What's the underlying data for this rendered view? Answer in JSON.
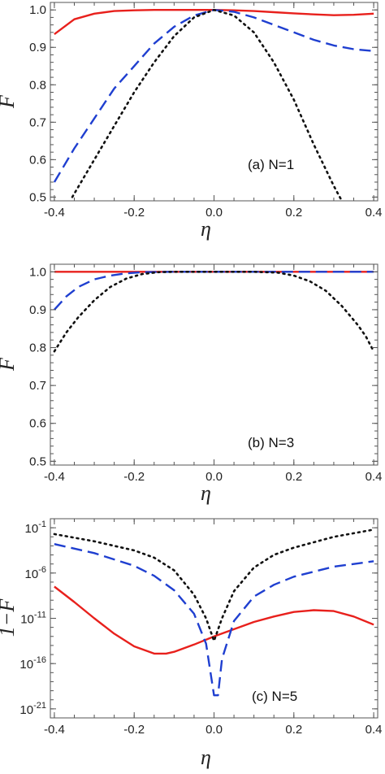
{
  "chart_data": [
    {
      "type": "line",
      "panel_label": "(a) N=1",
      "xlabel": "η",
      "ylabel": "F",
      "xlim": [
        -0.41,
        0.41
      ],
      "ylim": [
        0.49,
        1.02
      ],
      "log_y": false,
      "xticks": [
        "-0.4",
        "-0.2",
        "0.0",
        "0.2",
        "0.4"
      ],
      "xtick_values": [
        -0.4,
        -0.2,
        0.0,
        0.2,
        0.4
      ],
      "yticks": [
        "0.5",
        "0.6",
        "0.7",
        "0.8",
        "0.9",
        "1.0"
      ],
      "ytick_values": [
        0.5,
        0.6,
        0.7,
        0.8,
        0.9,
        1.0
      ],
      "series": [
        {
          "style": "solid",
          "color": "#e8201c",
          "x": [
            -0.4,
            -0.35,
            -0.3,
            -0.25,
            -0.2,
            -0.15,
            -0.1,
            -0.05,
            0.0,
            0.05,
            0.1,
            0.15,
            0.2,
            0.25,
            0.3,
            0.35,
            0.4
          ],
          "y": [
            0.935,
            0.975,
            0.99,
            0.997,
            0.999,
            1.0,
            1.0,
            1.0,
            1.0,
            0.999,
            0.997,
            0.994,
            0.991,
            0.988,
            0.986,
            0.987,
            0.99
          ]
        },
        {
          "style": "dashed",
          "color": "#1f3fd0",
          "x": [
            -0.4,
            -0.35,
            -0.3,
            -0.25,
            -0.2,
            -0.15,
            -0.1,
            -0.05,
            0.0,
            0.05,
            0.1,
            0.15,
            0.2,
            0.25,
            0.3,
            0.35,
            0.4
          ],
          "y": [
            0.54,
            0.63,
            0.71,
            0.79,
            0.85,
            0.91,
            0.955,
            0.985,
            1.0,
            0.995,
            0.98,
            0.96,
            0.94,
            0.92,
            0.905,
            0.895,
            0.89
          ]
        },
        {
          "style": "dotted",
          "color": "#111111",
          "x": [
            -0.355,
            -0.3,
            -0.25,
            -0.2,
            -0.15,
            -0.1,
            -0.05,
            0.0,
            0.05,
            0.1,
            0.15,
            0.2,
            0.25,
            0.3,
            0.32
          ],
          "y": [
            0.5,
            0.6,
            0.69,
            0.78,
            0.86,
            0.93,
            0.98,
            1.0,
            0.985,
            0.94,
            0.86,
            0.76,
            0.64,
            0.53,
            0.49
          ]
        }
      ]
    },
    {
      "type": "line",
      "panel_label": "(b) N=3",
      "xlabel": "η",
      "ylabel": "F",
      "xlim": [
        -0.41,
        0.41
      ],
      "ylim": [
        0.49,
        1.02
      ],
      "log_y": false,
      "xticks": [
        "-0.4",
        "-0.2",
        "0.0",
        "0.2",
        "0.4"
      ],
      "xtick_values": [
        -0.4,
        -0.2,
        0.0,
        0.2,
        0.4
      ],
      "yticks": [
        "0.5",
        "0.6",
        "0.7",
        "0.8",
        "0.9",
        "1.0"
      ],
      "ytick_values": [
        0.5,
        0.6,
        0.7,
        0.8,
        0.9,
        1.0
      ],
      "series": [
        {
          "style": "solid",
          "color": "#e8201c",
          "x": [
            -0.4,
            -0.2,
            0.0,
            0.2,
            0.4
          ],
          "y": [
            1.0,
            1.0,
            1.0,
            1.0,
            1.0
          ]
        },
        {
          "style": "dashed",
          "color": "#1f3fd0",
          "x": [
            -0.4,
            -0.37,
            -0.34,
            -0.3,
            -0.26,
            -0.22,
            -0.18,
            -0.1,
            0.0,
            0.1,
            0.2,
            0.3,
            0.4
          ],
          "y": [
            0.9,
            0.935,
            0.96,
            0.98,
            0.99,
            0.996,
            0.999,
            1.0,
            1.0,
            1.0,
            1.0,
            1.0,
            1.0
          ]
        },
        {
          "style": "dotted",
          "color": "#111111",
          "x": [
            -0.4,
            -0.37,
            -0.34,
            -0.3,
            -0.26,
            -0.22,
            -0.18,
            -0.14,
            -0.1,
            0.0,
            0.1,
            0.16,
            0.2,
            0.24,
            0.28,
            0.32,
            0.36,
            0.38,
            0.4
          ],
          "y": [
            0.79,
            0.84,
            0.88,
            0.925,
            0.96,
            0.982,
            0.994,
            0.999,
            1.0,
            1.0,
            1.0,
            0.998,
            0.99,
            0.975,
            0.95,
            0.91,
            0.86,
            0.83,
            0.79
          ]
        }
      ]
    },
    {
      "type": "line",
      "panel_label": "(c) N=5",
      "xlabel": "η",
      "ylabel": "1−F",
      "xlim": [
        -0.41,
        0.41
      ],
      "ylim_log10": [
        -22,
        0
      ],
      "log_y": true,
      "xticks": [
        "-0.4",
        "-0.2",
        "0.0",
        "0.2",
        "0.4"
      ],
      "xtick_values": [
        -0.4,
        -0.2,
        0.0,
        0.2,
        0.4
      ],
      "yticks": [
        {
          "base": "10",
          "exp": "-1",
          "value": -1
        },
        {
          "base": "10",
          "exp": "-6",
          "value": -6
        },
        {
          "base": "10",
          "exp": "-11",
          "value": -11
        },
        {
          "base": "10",
          "exp": "-16",
          "value": -16
        },
        {
          "base": "10",
          "exp": "-21",
          "value": -21
        }
      ],
      "series": [
        {
          "style": "solid",
          "color": "#e8201c",
          "x": [
            -0.4,
            -0.35,
            -0.3,
            -0.25,
            -0.2,
            -0.15,
            -0.12,
            -0.1,
            -0.05,
            0.0,
            0.05,
            0.1,
            0.15,
            0.2,
            0.25,
            0.3,
            0.35,
            0.4
          ],
          "y_log10": [
            -7.5,
            -9.2,
            -11.0,
            -12.7,
            -14.1,
            -14.9,
            -14.9,
            -14.7,
            -13.9,
            -13.0,
            -12.2,
            -11.4,
            -10.8,
            -10.3,
            -10.1,
            -10.2,
            -10.8,
            -11.7
          ]
        },
        {
          "style": "dashed",
          "color": "#1f3fd0",
          "x": [
            -0.4,
            -0.3,
            -0.2,
            -0.15,
            -0.1,
            -0.05,
            -0.02,
            0.0,
            0.01,
            0.02,
            0.05,
            0.1,
            0.15,
            0.2,
            0.3,
            0.4
          ],
          "y_log10": [
            -2.8,
            -3.8,
            -5.2,
            -6.3,
            -7.9,
            -10.5,
            -13.8,
            -19.5,
            -19.5,
            -15.5,
            -11.3,
            -8.6,
            -7.3,
            -6.4,
            -5.3,
            -4.7
          ]
        },
        {
          "style": "dotted",
          "color": "#111111",
          "x": [
            -0.4,
            -0.3,
            -0.2,
            -0.15,
            -0.1,
            -0.05,
            -0.02,
            0.0,
            0.02,
            0.05,
            0.1,
            0.15,
            0.2,
            0.3,
            0.4
          ],
          "y_log10": [
            -1.7,
            -2.5,
            -3.5,
            -4.3,
            -5.7,
            -8.4,
            -11.0,
            -13.5,
            -11.0,
            -8.0,
            -5.4,
            -4.0,
            -3.2,
            -2.0,
            -1.2
          ]
        }
      ]
    }
  ]
}
